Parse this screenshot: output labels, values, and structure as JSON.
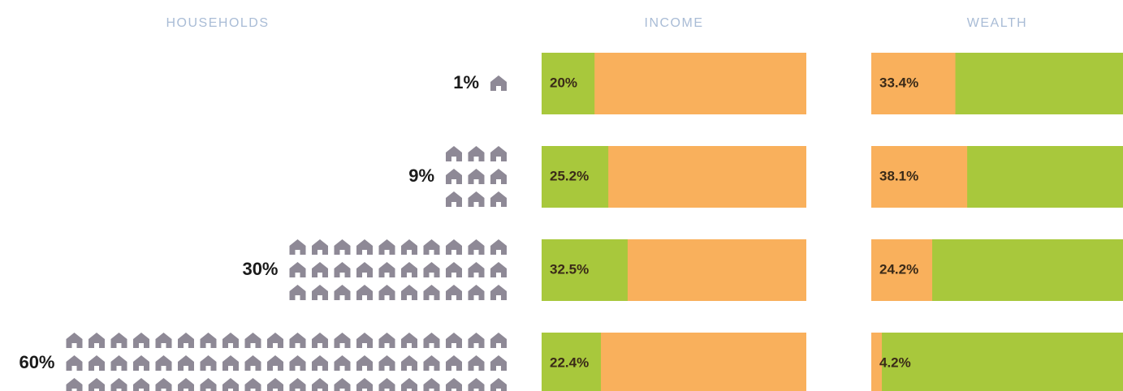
{
  "chart_data": {
    "type": "pictogram-bar",
    "series": [
      {
        "name": "HOUSEHOLDS",
        "kind": "pictogram",
        "color": "#8e8996",
        "values": [
          1,
          9,
          30,
          60
        ],
        "value_labels": [
          "1%",
          "9%",
          "30%",
          "60%"
        ]
      },
      {
        "name": "INCOME",
        "kind": "bar",
        "color": "#a8c83c",
        "track_color": "#f9b05c",
        "values": [
          20,
          25.2,
          32.5,
          22.4
        ],
        "value_labels": [
          "20%",
          "25.2%",
          "32.5%",
          "22.4%"
        ]
      },
      {
        "name": "WEALTH",
        "kind": "bar",
        "color": "#f9b05c",
        "track_color": "#a8c83c",
        "values": [
          33.4,
          38.1,
          24.2,
          4.2
        ],
        "value_labels": [
          "33.4%",
          "38.1%",
          "24.2%",
          "4.2%"
        ]
      }
    ],
    "xlim": [
      0,
      100
    ]
  }
}
